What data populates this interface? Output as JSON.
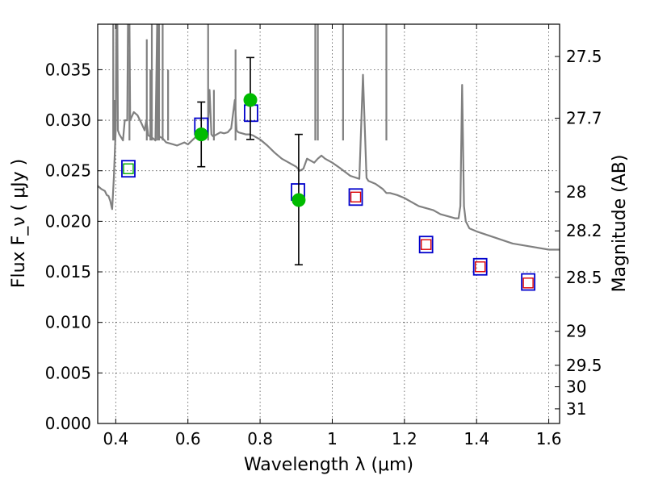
{
  "chart_data": {
    "type": "scatter",
    "title": "",
    "xlabel": "Wavelength  λ (μm)",
    "ylabel": "Flux  F_ν  ( μJy )",
    "y2label": "Magnitude (AB)",
    "xlim": [
      0.35,
      1.63
    ],
    "ylim": [
      0.0,
      0.0395
    ],
    "grid": true,
    "x_ticks": [
      {
        "value": 0.4,
        "label": "0.4"
      },
      {
        "value": 0.6,
        "label": "0.6"
      },
      {
        "value": 0.8,
        "label": "0.8"
      },
      {
        "value": 1.0,
        "label": "1"
      },
      {
        "value": 1.2,
        "label": "1.2"
      },
      {
        "value": 1.4,
        "label": "1.4"
      },
      {
        "value": 1.6,
        "label": "1.6"
      }
    ],
    "y_ticks": [
      {
        "value": 0.0,
        "label": "0.000"
      },
      {
        "value": 0.005,
        "label": "0.005"
      },
      {
        "value": 0.01,
        "label": "0.010"
      },
      {
        "value": 0.015,
        "label": "0.015"
      },
      {
        "value": 0.02,
        "label": "0.020"
      },
      {
        "value": 0.025,
        "label": "0.025"
      },
      {
        "value": 0.03,
        "label": "0.030"
      },
      {
        "value": 0.035,
        "label": "0.035"
      }
    ],
    "y2_ticks": [
      {
        "value": 27.5,
        "label": "27.5"
      },
      {
        "value": 27.7,
        "label": "27.7"
      },
      {
        "value": 28.0,
        "label": "28"
      },
      {
        "value": 28.2,
        "label": "28.2"
      },
      {
        "value": 28.5,
        "label": "28.5"
      },
      {
        "value": 29.0,
        "label": "29"
      },
      {
        "value": 29.5,
        "label": "29.5"
      },
      {
        "value": 30.0,
        "label": "30"
      },
      {
        "value": 31.0,
        "label": "31"
      }
    ],
    "model_spectrum": {
      "color": "#808080",
      "points": [
        [
          0.35,
          0.0235
        ],
        [
          0.36,
          0.0232
        ],
        [
          0.37,
          0.023
        ],
        [
          0.375,
          0.0226
        ],
        [
          0.38,
          0.0225
        ],
        [
          0.385,
          0.022
        ],
        [
          0.388,
          0.0215
        ],
        [
          0.39,
          0.0212
        ],
        [
          0.392,
          0.0225
        ],
        [
          0.395,
          0.0245
        ],
        [
          0.398,
          0.0275
        ],
        [
          0.4,
          0.029
        ],
        [
          0.403,
          0.05
        ],
        [
          0.406,
          0.029
        ],
        [
          0.41,
          0.0286
        ],
        [
          0.42,
          0.028
        ],
        [
          0.425,
          0.03
        ],
        [
          0.432,
          0.03
        ],
        [
          0.436,
          0.05
        ],
        [
          0.44,
          0.03
        ],
        [
          0.45,
          0.0308
        ],
        [
          0.46,
          0.0305
        ],
        [
          0.47,
          0.0298
        ],
        [
          0.48,
          0.029
        ],
        [
          0.485,
          0.03
        ],
        [
          0.49,
          0.0285
        ],
        [
          0.5,
          0.0283
        ],
        [
          0.51,
          0.028
        ],
        [
          0.515,
          0.04
        ],
        [
          0.52,
          0.0284
        ],
        [
          0.53,
          0.0282
        ],
        [
          0.54,
          0.0278
        ],
        [
          0.56,
          0.0276
        ],
        [
          0.57,
          0.0275
        ],
        [
          0.59,
          0.0278
        ],
        [
          0.6,
          0.0276
        ],
        [
          0.62,
          0.0283
        ],
        [
          0.63,
          0.0285
        ],
        [
          0.64,
          0.0286
        ],
        [
          0.655,
          0.0285
        ],
        [
          0.66,
          0.033
        ],
        [
          0.665,
          0.0286
        ],
        [
          0.67,
          0.0284
        ],
        [
          0.68,
          0.0286
        ],
        [
          0.69,
          0.0288
        ],
        [
          0.7,
          0.0287
        ],
        [
          0.71,
          0.0288
        ],
        [
          0.72,
          0.0292
        ],
        [
          0.73,
          0.032
        ],
        [
          0.735,
          0.029
        ],
        [
          0.74,
          0.0288
        ],
        [
          0.75,
          0.0287
        ],
        [
          0.76,
          0.0286
        ],
        [
          0.77,
          0.0286
        ],
        [
          0.78,
          0.0285
        ],
        [
          0.79,
          0.0283
        ],
        [
          0.8,
          0.0281
        ],
        [
          0.82,
          0.0275
        ],
        [
          0.84,
          0.0268
        ],
        [
          0.86,
          0.0262
        ],
        [
          0.88,
          0.0258
        ],
        [
          0.89,
          0.0256
        ],
        [
          0.9,
          0.0254
        ],
        [
          0.91,
          0.025
        ],
        [
          0.92,
          0.0252
        ],
        [
          0.93,
          0.0262
        ],
        [
          0.94,
          0.026
        ],
        [
          0.95,
          0.0258
        ],
        [
          0.96,
          0.0262
        ],
        [
          0.97,
          0.0265
        ],
        [
          0.98,
          0.0262
        ],
        [
          1.0,
          0.0258
        ],
        [
          1.02,
          0.0253
        ],
        [
          1.05,
          0.0245
        ],
        [
          1.075,
          0.0242
        ],
        [
          1.085,
          0.0345
        ],
        [
          1.095,
          0.0243
        ],
        [
          1.1,
          0.024
        ],
        [
          1.12,
          0.0237
        ],
        [
          1.14,
          0.0232
        ],
        [
          1.15,
          0.0228
        ],
        [
          1.16,
          0.0228
        ],
        [
          1.18,
          0.0226
        ],
        [
          1.2,
          0.0223
        ],
        [
          1.22,
          0.0219
        ],
        [
          1.24,
          0.0215
        ],
        [
          1.26,
          0.0213
        ],
        [
          1.28,
          0.0211
        ],
        [
          1.3,
          0.0207
        ],
        [
          1.32,
          0.0205
        ],
        [
          1.34,
          0.0203
        ],
        [
          1.35,
          0.0203
        ],
        [
          1.355,
          0.0215
        ],
        [
          1.36,
          0.0335
        ],
        [
          1.365,
          0.0215
        ],
        [
          1.37,
          0.02
        ],
        [
          1.38,
          0.0193
        ],
        [
          1.4,
          0.019
        ],
        [
          1.45,
          0.0184
        ],
        [
          1.5,
          0.0178
        ],
        [
          1.55,
          0.0175
        ],
        [
          1.6,
          0.0172
        ],
        [
          1.63,
          0.0172
        ]
      ],
      "peaks": [
        [
          0.393,
          0.04
        ],
        [
          0.397,
          0.032
        ],
        [
          0.438,
          0.037
        ],
        [
          0.486,
          0.038
        ],
        [
          0.496,
          0.035
        ],
        [
          0.5,
          0.04
        ],
        [
          0.515,
          0.043
        ],
        [
          0.52,
          0.042
        ],
        [
          0.53,
          0.04
        ],
        [
          0.545,
          0.035
        ],
        [
          0.656,
          0.04
        ],
        [
          0.672,
          0.033
        ],
        [
          0.732,
          0.037
        ],
        [
          0.953,
          0.04
        ],
        [
          0.96,
          0.04
        ],
        [
          1.03,
          0.04
        ],
        [
          1.15,
          0.04
        ]
      ]
    },
    "blue_squares": {
      "color": "#0000cc",
      "points": [
        [
          0.435,
          0.0252
        ],
        [
          0.637,
          0.0294
        ],
        [
          0.775,
          0.0307
        ],
        [
          0.905,
          0.0229
        ],
        [
          1.065,
          0.0224
        ],
        [
          1.26,
          0.0177
        ],
        [
          1.41,
          0.0155
        ],
        [
          1.543,
          0.014
        ]
      ]
    },
    "red_squares": {
      "color": "#dd0000",
      "points": [
        [
          1.065,
          0.0224
        ],
        [
          1.26,
          0.0177
        ],
        [
          1.41,
          0.0155
        ],
        [
          1.543,
          0.0139
        ]
      ]
    },
    "green_square": {
      "color": "#00aa00",
      "points": [
        [
          0.435,
          0.0252
        ]
      ]
    },
    "observed": {
      "color": "#00bb00",
      "points": [
        {
          "x": 0.637,
          "y": 0.0286,
          "yerr_low": 0.0254,
          "yerr_high": 0.0318
        },
        {
          "x": 0.773,
          "y": 0.032,
          "yerr_low": 0.0281,
          "yerr_high": 0.0362
        },
        {
          "x": 0.907,
          "y": 0.0221,
          "yerr_low": 0.0157,
          "yerr_high": 0.0286
        }
      ]
    }
  }
}
